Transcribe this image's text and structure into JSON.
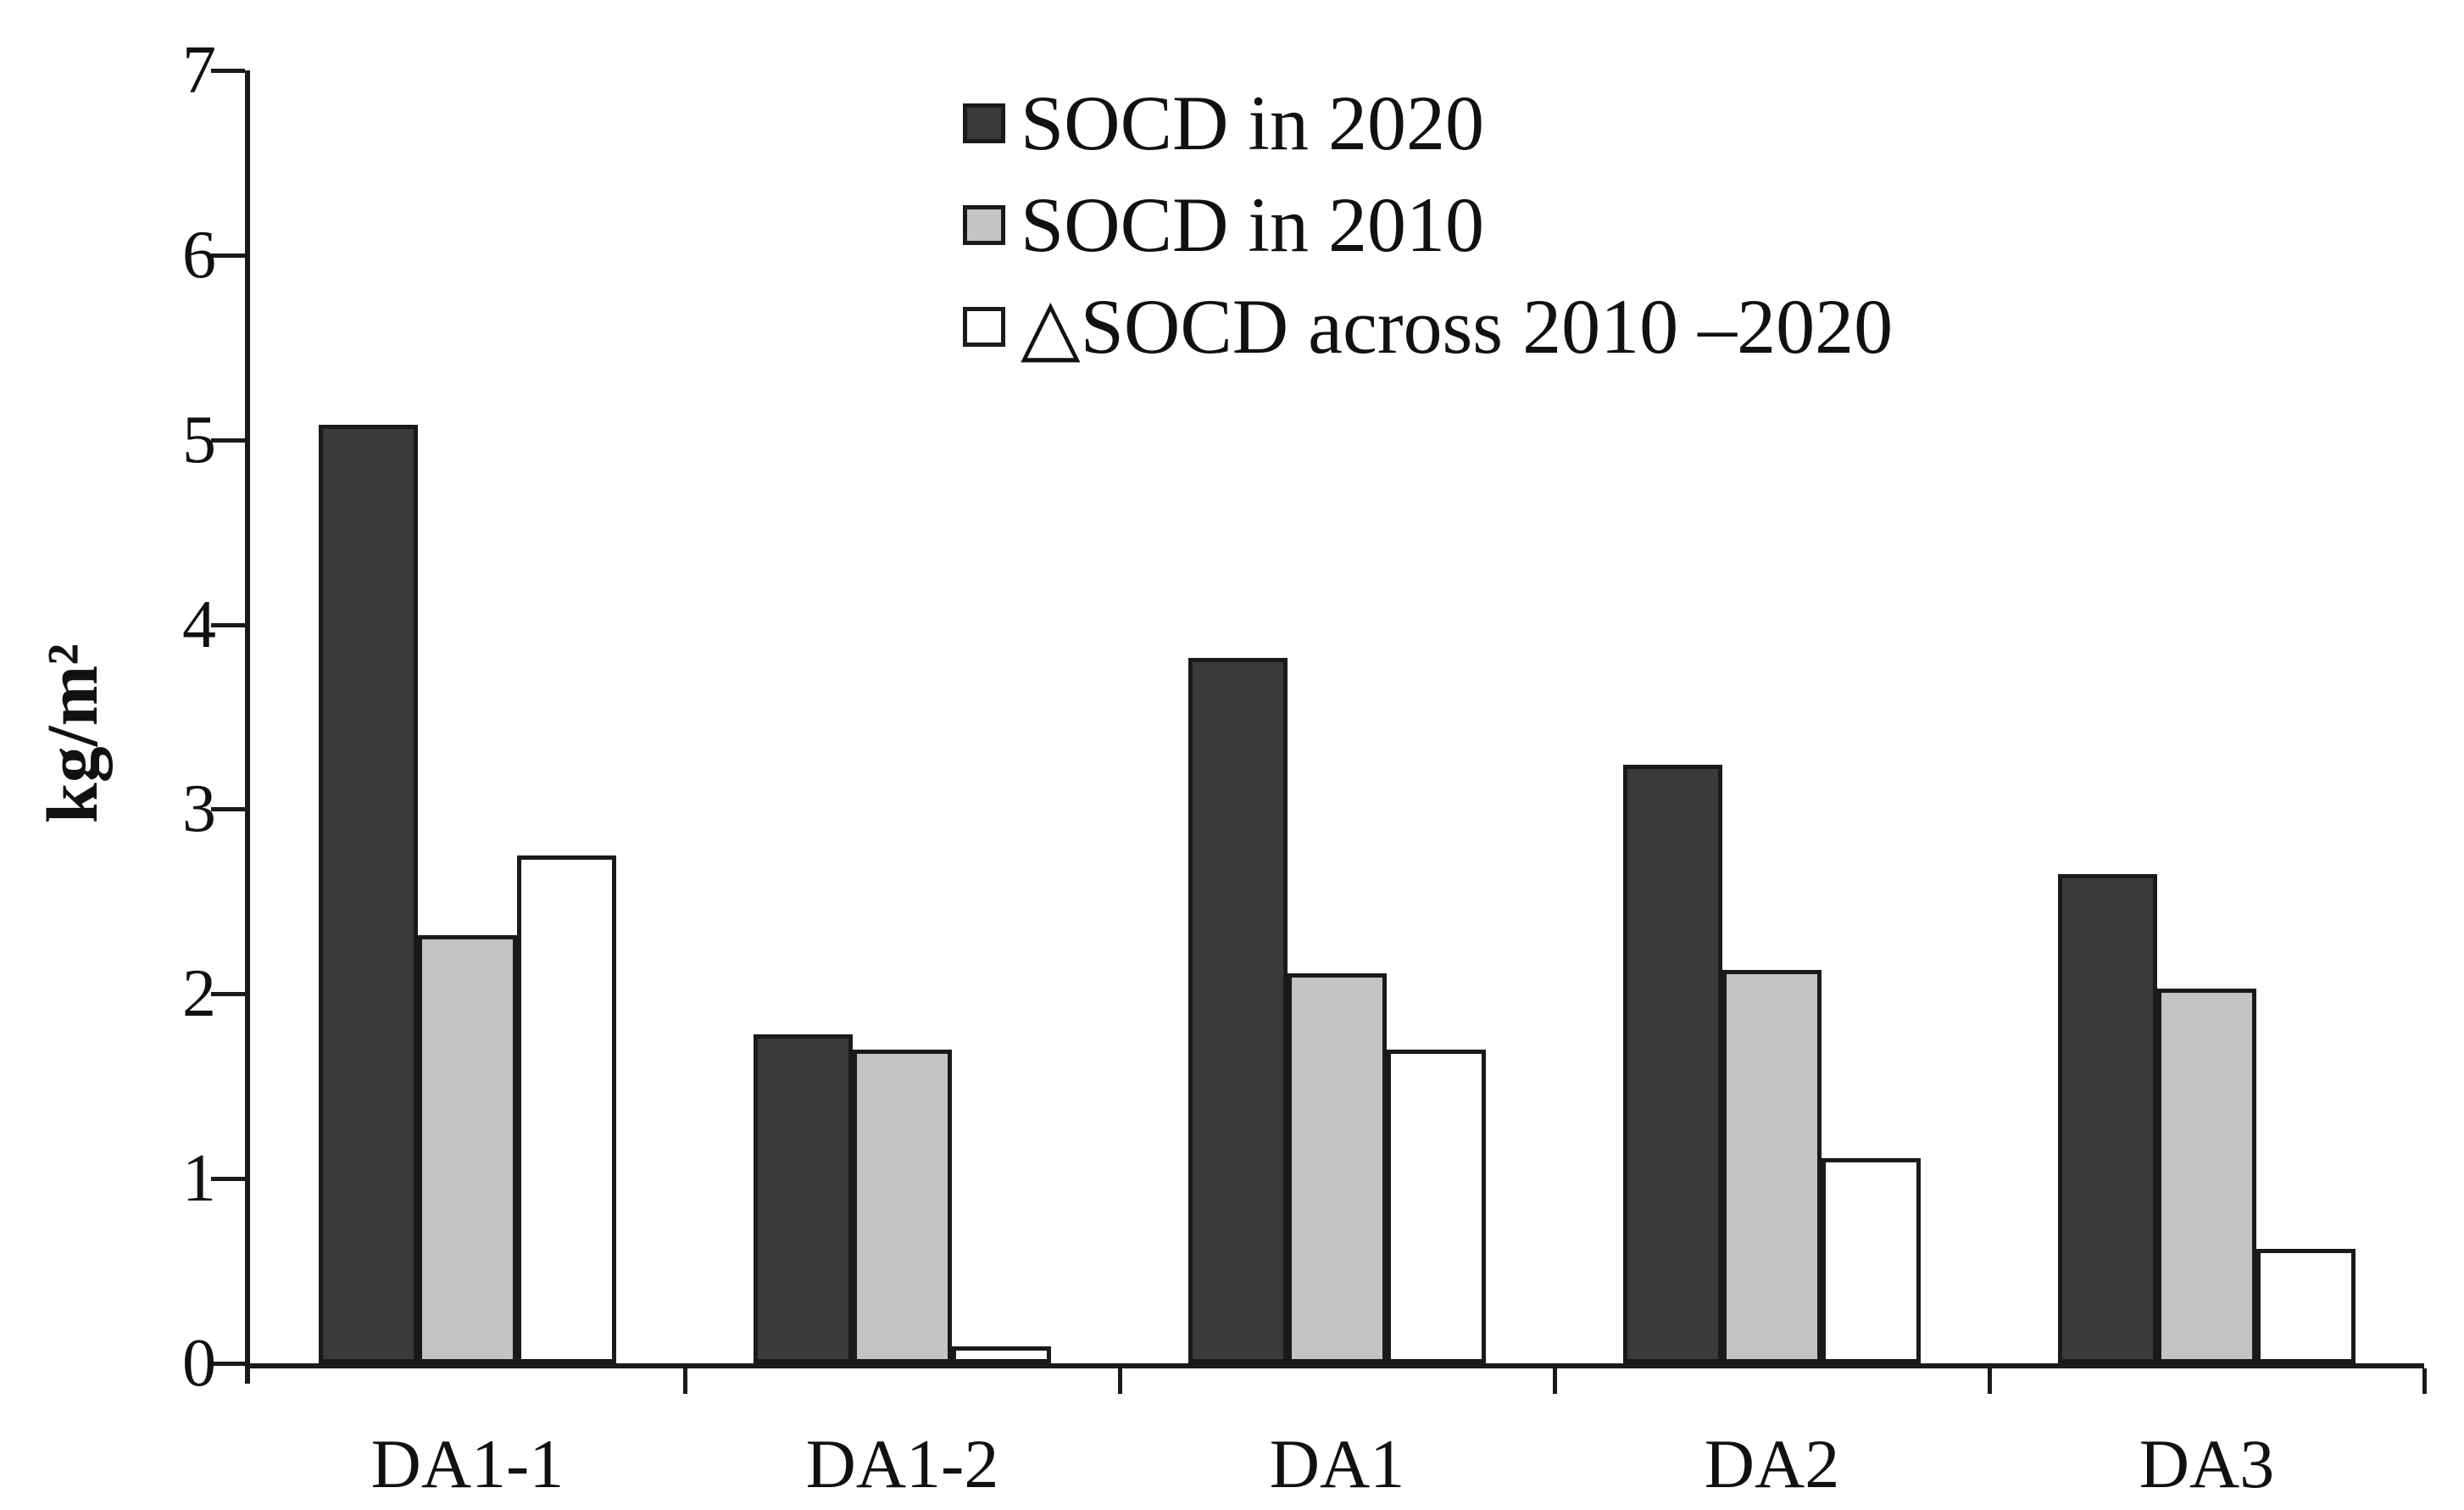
{
  "chart_data": {
    "type": "bar",
    "title": "",
    "xlabel": "",
    "ylabel": "kg/m²",
    "ylim": [
      0,
      7
    ],
    "yticks": [
      0,
      1,
      2,
      3,
      4,
      5,
      6,
      7
    ],
    "grid": false,
    "legend_position": "top-center",
    "categories": [
      "DA1-1",
      "DA1-2",
      "DA1",
      "DA2",
      "DA3"
    ],
    "series": [
      {
        "name": "SOCD in 2020",
        "fill": "#3a3a3a",
        "values": [
          5.08,
          1.78,
          3.82,
          3.24,
          2.65
        ]
      },
      {
        "name": "SOCD in 2010",
        "fill": "#c4c4c4",
        "values": [
          2.32,
          1.7,
          2.11,
          2.13,
          2.03
        ]
      },
      {
        "name": "△SOCD across 2010 –2020",
        "fill": "#ffffff",
        "values": [
          2.75,
          0.09,
          1.7,
          1.11,
          0.62
        ]
      }
    ],
    "colors": {
      "axis": "#1a1a1a",
      "text": "#111111",
      "background": "#ffffff"
    }
  }
}
